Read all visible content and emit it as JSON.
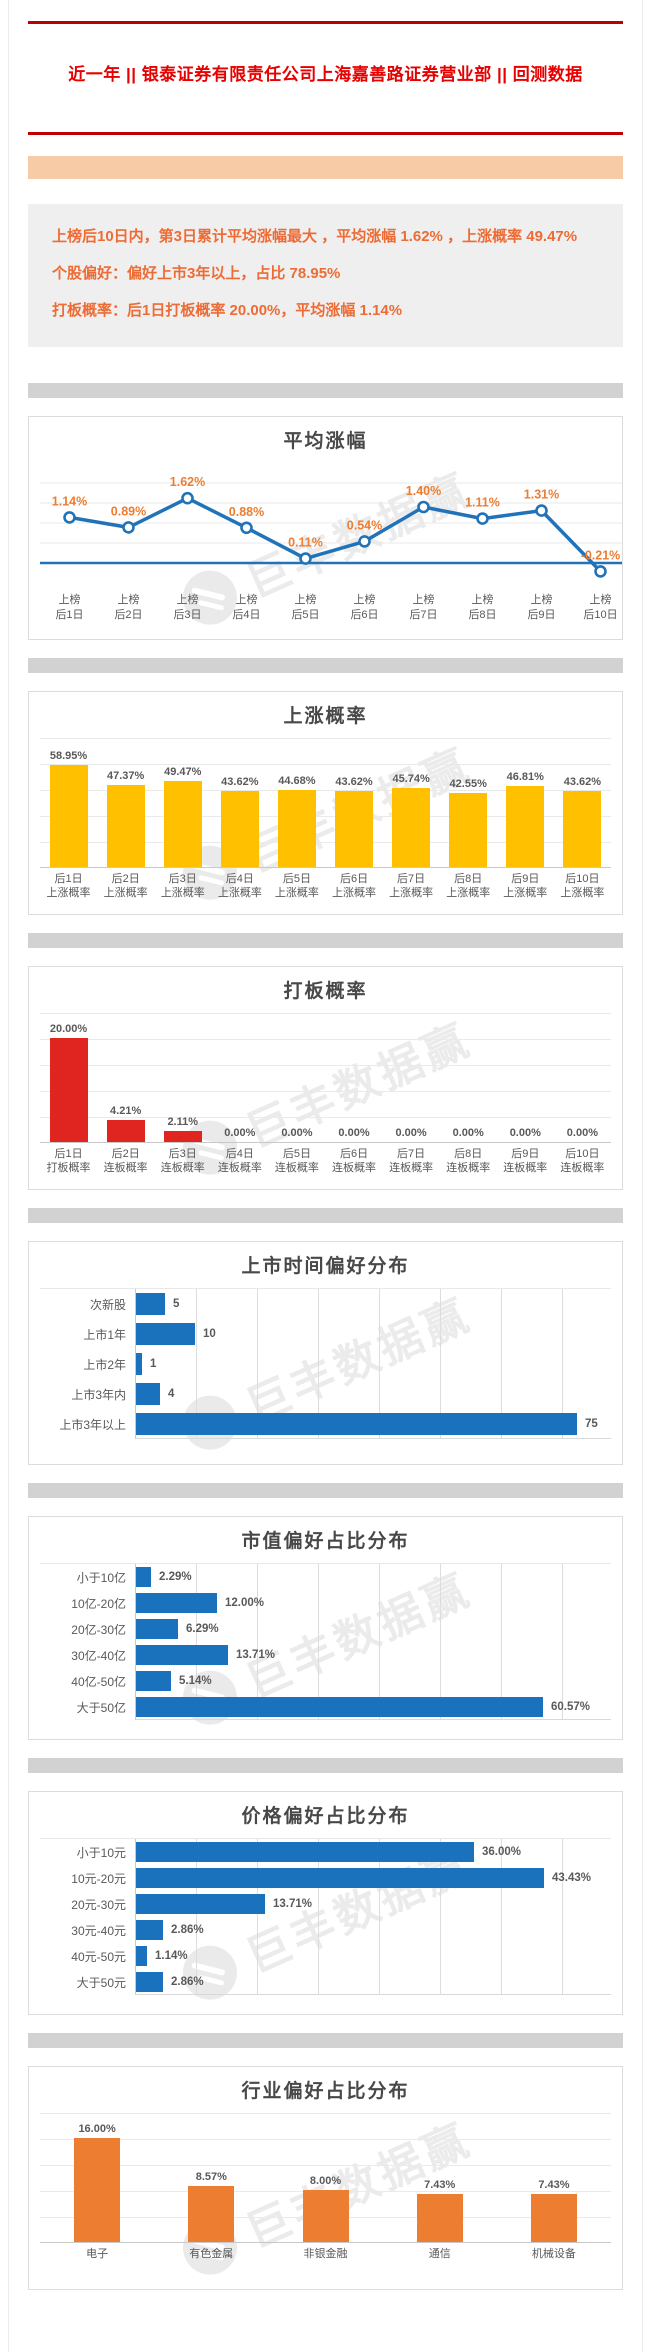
{
  "page": {
    "title": "近一年  ||  银泰证券有限责任公司上海嘉善路证券营业部  ||  回测数据"
  },
  "summary": {
    "lines": [
      "上榜后10日内，第3日累计平均涨幅最大 ，平均涨幅 1.62% ，上涨概率 49.47%",
      "个股偏好：偏好上市3年以上，占比 78.95%",
      "打板概率：后1日打板概率 20.00%，平均涨幅 1.14%"
    ]
  },
  "watermark_text": "巨丰数据赢",
  "colors": {
    "rule_red": "#c00000",
    "title_red": "#e60000",
    "banner_orange": "#f6cba6",
    "summary_text_orange": "#ed6c35",
    "line_blue": "#2173b9",
    "bar_gold": "#ffc000",
    "bar_red": "#e02521",
    "bar_blue": "#1b72bc",
    "bar_orange": "#ed7d31",
    "data_label_orange": "#ed7d31",
    "axis_label_gray": "#595959"
  },
  "chart_data": [
    {
      "type": "line",
      "title": "平均涨幅",
      "categories": [
        [
          "上榜",
          "后1日"
        ],
        [
          "上榜",
          "后2日"
        ],
        [
          "上榜",
          "后3日"
        ],
        [
          "上榜",
          "后4日"
        ],
        [
          "上榜",
          "后5日"
        ],
        [
          "上榜",
          "后6日"
        ],
        [
          "上榜",
          "后7日"
        ],
        [
          "上榜",
          "后8日"
        ],
        [
          "上榜",
          "后9日"
        ],
        [
          "上榜",
          "后10日"
        ]
      ],
      "values": [
        1.14,
        0.89,
        1.62,
        0.88,
        0.11,
        0.54,
        1.4,
        1.11,
        1.31,
        -0.21
      ],
      "labels": [
        "1.14%",
        "0.89%",
        "1.62%",
        "0.88%",
        "0.11%",
        "0.54%",
        "1.40%",
        "1.11%",
        "1.31%",
        "-0.21%"
      ],
      "ylim": [
        -0.6,
        2.4
      ],
      "grid": true,
      "legend": "none",
      "color": "#2173b9",
      "label_color": "#ed7d31"
    },
    {
      "type": "bar",
      "title": "上涨概率",
      "categories": [
        [
          "后1日",
          "上涨概率"
        ],
        [
          "后2日",
          "上涨概率"
        ],
        [
          "后3日",
          "上涨概率"
        ],
        [
          "后4日",
          "上涨概率"
        ],
        [
          "后5日",
          "上涨概率"
        ],
        [
          "后6日",
          "上涨概率"
        ],
        [
          "后7日",
          "上涨概率"
        ],
        [
          "后8日",
          "上涨概率"
        ],
        [
          "后9日",
          "上涨概率"
        ],
        [
          "后10日",
          "上涨概率"
        ]
      ],
      "values": [
        58.95,
        47.37,
        49.47,
        43.62,
        44.68,
        43.62,
        45.74,
        42.55,
        46.81,
        43.62
      ],
      "labels": [
        "58.95%",
        "47.37%",
        "49.47%",
        "43.62%",
        "44.68%",
        "43.62%",
        "45.74%",
        "42.55%",
        "46.81%",
        "43.62%"
      ],
      "ylim": [
        0,
        75
      ],
      "grid": true,
      "legend": "none",
      "color": "#ffc000"
    },
    {
      "type": "bar",
      "title": "打板概率",
      "categories": [
        [
          "后1日",
          "打板概率"
        ],
        [
          "后2日",
          "连板概率"
        ],
        [
          "后3日",
          "连板概率"
        ],
        [
          "后4日",
          "连板概率"
        ],
        [
          "后5日",
          "连板概率"
        ],
        [
          "后6日",
          "连板概率"
        ],
        [
          "后7日",
          "连板概率"
        ],
        [
          "后8日",
          "连板概率"
        ],
        [
          "后9日",
          "连板概率"
        ],
        [
          "后10日",
          "连板概率"
        ]
      ],
      "values": [
        20.0,
        4.21,
        2.11,
        0.0,
        0.0,
        0.0,
        0.0,
        0.0,
        0.0,
        0.0
      ],
      "labels": [
        "20.00%",
        "4.21%",
        "2.11%",
        "0.00%",
        "0.00%",
        "0.00%",
        "0.00%",
        "0.00%",
        "0.00%",
        "0.00%"
      ],
      "ylim": [
        0,
        25
      ],
      "grid": true,
      "legend": "none",
      "color": "#e02521"
    },
    {
      "type": "hbar",
      "title": "上市时间偏好分布",
      "categories": [
        "次新股",
        "上市1年",
        "上市2年",
        "上市3年内",
        "上市3年以上"
      ],
      "values": [
        5,
        10,
        1,
        4,
        75
      ],
      "labels": [
        "5",
        "10",
        "1",
        "4",
        "75"
      ],
      "xlim": [
        0,
        80
      ],
      "grid": true,
      "legend": "none",
      "color": "#1b72bc"
    },
    {
      "type": "hbar",
      "title": "市值偏好占比分布",
      "categories": [
        "小于10亿",
        "10亿-20亿",
        "20亿-30亿",
        "30亿-40亿",
        "40亿-50亿",
        "大于50亿"
      ],
      "values": [
        2.29,
        12.0,
        6.29,
        13.71,
        5.14,
        60.57
      ],
      "labels": [
        "2.29%",
        "12.00%",
        "6.29%",
        "13.71%",
        "5.14%",
        "60.57%"
      ],
      "xlim": [
        0,
        70
      ],
      "grid": true,
      "legend": "none",
      "color": "#1b72bc"
    },
    {
      "type": "hbar",
      "title": "价格偏好占比分布",
      "categories": [
        "小于10元",
        "10元-20元",
        "20元-30元",
        "30元-40元",
        "40元-50元",
        "大于50元"
      ],
      "values": [
        36.0,
        43.43,
        13.71,
        2.86,
        1.14,
        2.86
      ],
      "labels": [
        "36.00%",
        "43.43%",
        "13.71%",
        "2.86%",
        "1.14%",
        "2.86%"
      ],
      "xlim": [
        0,
        50
      ],
      "grid": true,
      "legend": "none",
      "color": "#1b72bc"
    },
    {
      "type": "bar",
      "title": "行业偏好占比分布",
      "categories": [
        [
          "电子"
        ],
        [
          "有色金属"
        ],
        [
          "非银金融"
        ],
        [
          "通信"
        ],
        [
          "机械设备"
        ]
      ],
      "values": [
        16.0,
        8.57,
        8.0,
        7.43,
        7.43
      ],
      "labels": [
        "16.00%",
        "8.57%",
        "8.00%",
        "7.43%",
        "7.43%"
      ],
      "ylim": [
        0,
        20
      ],
      "grid": true,
      "legend": "none",
      "color": "#ed7d31"
    }
  ]
}
